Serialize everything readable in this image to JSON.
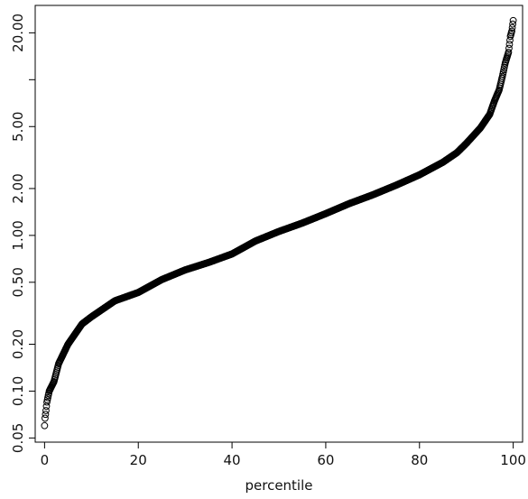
{
  "chart_data": {
    "type": "scatter",
    "title": "",
    "xlabel": "percentile",
    "ylabel": "",
    "y_scale": "log",
    "xlim": [
      -2,
      102
    ],
    "ylim": [
      0.047,
      30
    ],
    "x_ticks": [
      0,
      20,
      40,
      60,
      80,
      100
    ],
    "x_tick_labels": [
      "0",
      "20",
      "40",
      "60",
      "80",
      "100"
    ],
    "y_ticks": [
      0.05,
      0.1,
      0.2,
      0.5,
      1.0,
      2.0,
      5.0,
      20.0
    ],
    "y_tick_labels": [
      "0.05",
      "0.10",
      "0.20",
      "0.50",
      "1.00",
      "2.00",
      "5.00",
      "20.00"
    ],
    "y_unlabeled_ticks": [
      10.0
    ],
    "grid": false,
    "marker": "open-circle",
    "point_count": 1001,
    "series": [
      {
        "curve_points": [
          [
            0,
            0.06
          ],
          [
            0.1,
            0.067
          ],
          [
            0.3,
            0.075
          ],
          [
            0.5,
            0.085
          ],
          [
            1,
            0.1
          ],
          [
            2,
            0.115
          ],
          [
            3,
            0.15
          ],
          [
            5,
            0.2
          ],
          [
            8,
            0.27
          ],
          [
            10,
            0.3
          ],
          [
            15,
            0.38
          ],
          [
            20,
            0.43
          ],
          [
            25,
            0.52
          ],
          [
            30,
            0.6
          ],
          [
            35,
            0.67
          ],
          [
            40,
            0.76
          ],
          [
            45,
            0.92
          ],
          [
            50,
            1.06
          ],
          [
            55,
            1.2
          ],
          [
            60,
            1.38
          ],
          [
            65,
            1.6
          ],
          [
            70,
            1.82
          ],
          [
            75,
            2.1
          ],
          [
            80,
            2.45
          ],
          [
            85,
            2.95
          ],
          [
            88,
            3.4
          ],
          [
            90,
            3.9
          ],
          [
            93,
            4.9
          ],
          [
            95,
            6.0
          ],
          [
            96,
            7.3
          ],
          [
            97,
            8.6
          ],
          [
            97.7,
            10.5
          ],
          [
            98.3,
            12.8
          ],
          [
            99,
            15.0
          ],
          [
            99.4,
            19.0
          ],
          [
            99.7,
            20.5
          ],
          [
            100,
            24.0
          ]
        ]
      }
    ]
  }
}
